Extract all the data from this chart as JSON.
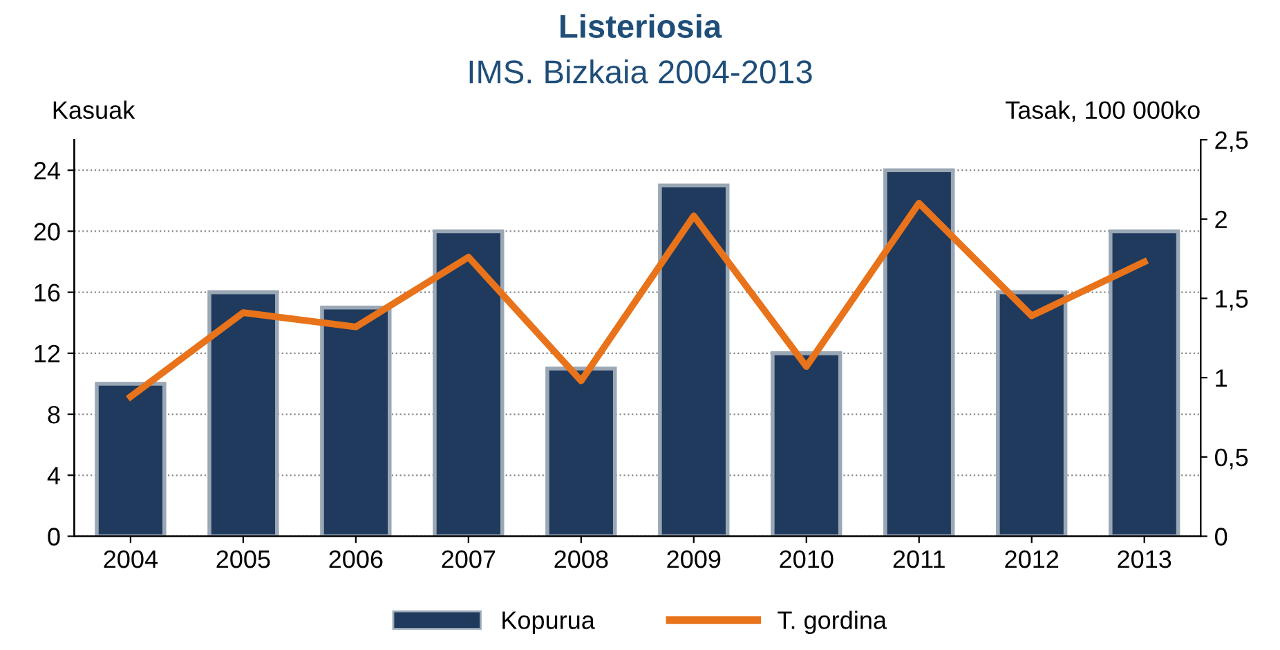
{
  "chart_data": {
    "type": "bar",
    "title": "Listeriosia",
    "subtitle": "IMS. Bizkaia 2004-2013",
    "ylabel": "Kasuak",
    "y2label": "Tasak, 100 000ko",
    "categories": [
      "2004",
      "2005",
      "2006",
      "2007",
      "2008",
      "2009",
      "2010",
      "2011",
      "2012",
      "2013"
    ],
    "series": [
      {
        "name": "Kopurua",
        "color": "#1f3a5c",
        "values": [
          10,
          16,
          15,
          20,
          11,
          23,
          12,
          24,
          16,
          20
        ]
      },
      {
        "name": "T. gordina",
        "type": "line",
        "axis": "y2",
        "color": "#e8731a",
        "values": [
          0.88,
          1.41,
          1.32,
          1.76,
          0.98,
          2.02,
          1.07,
          2.1,
          1.39,
          1.73
        ]
      }
    ],
    "ylim": [
      0,
      26
    ],
    "yticks": [
      0,
      4,
      8,
      12,
      16,
      20,
      24
    ],
    "y2lim": [
      0,
      2.5
    ],
    "y2ticks": [
      0,
      {
        "value": 0.5,
        "label": "0,5"
      },
      1,
      {
        "value": 1.5,
        "label": "1,5"
      },
      2,
      {
        "value": 2.5,
        "label": "2,5"
      }
    ],
    "grid": "y",
    "legend": "bottom",
    "marker": "none",
    "line_style": "solid"
  }
}
